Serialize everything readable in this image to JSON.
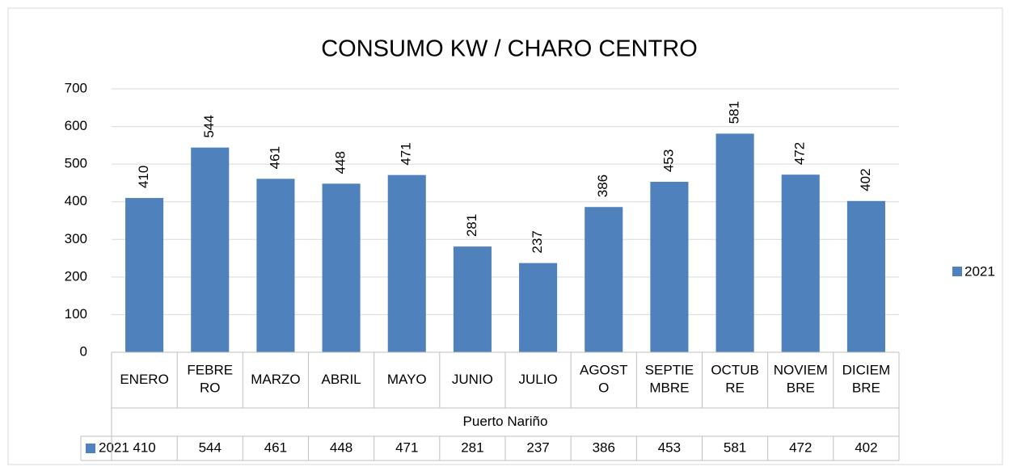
{
  "chart_data": {
    "type": "bar",
    "title": "CONSUMO KW / CHARO CENTRO",
    "categories": [
      "ENERO",
      "FEBRERO",
      "MARZO",
      "ABRIL",
      "MAYO",
      "JUNIO",
      "JULIO",
      "AGOSTO",
      "SEPTIEMBRE",
      "OCTUBRE",
      "NOVIEMBRE",
      "DICIEMBRE"
    ],
    "category_group": "Puerto Nariño",
    "series": [
      {
        "name": "2021",
        "color": "#4f81bd",
        "values": [
          410,
          544,
          461,
          448,
          471,
          281,
          237,
          386,
          453,
          581,
          472,
          402
        ]
      }
    ],
    "ylim": [
      0,
      700
    ],
    "yticks": [
      0,
      100,
      200,
      300,
      400,
      500,
      600,
      700
    ],
    "grid": true,
    "legend": "right",
    "data_table": true
  }
}
